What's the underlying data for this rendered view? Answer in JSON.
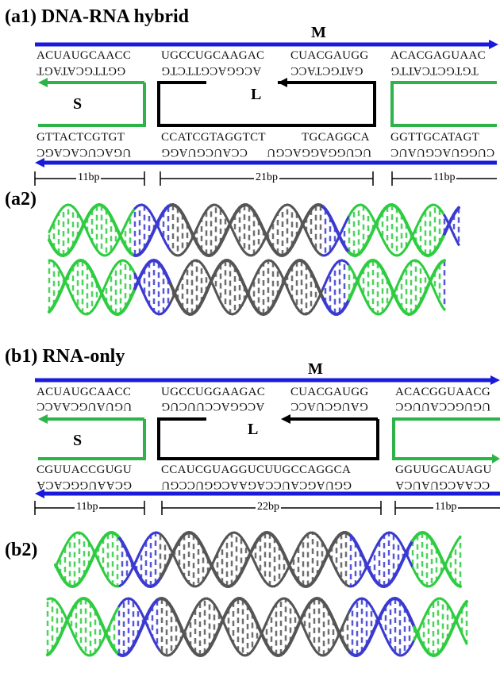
{
  "a1": {
    "title": "(a1) DNA-RNA hybrid",
    "strand_m": "M",
    "strand_l": "L",
    "strand_s": "S",
    "top_row": [
      "ACUAUGCAACC",
      "UGCCUGCAAGAC",
      "CUACGAUGG",
      "ACACGAGUAAC"
    ],
    "top_row_flipped": [
      "GGTTGCATAGT",
      "ACGGACGTTCTG",
      "GATGCTACC",
      "TGTGCTCATTG"
    ],
    "bottom_row": [
      "GTTACTCGTGT",
      "CCATCGTAGGTCT",
      "TGCAGGCA",
      "GGTTGCATAGT"
    ],
    "bottom_row_flipped": [
      "UGACUCACAGC",
      "CCAUCGUAGG",
      "UCUGGAGGACGU",
      "CUGGUACGUAUC"
    ],
    "bp": [
      "11bp",
      "21bp",
      "11bp"
    ]
  },
  "a2": {
    "title": "(a2)"
  },
  "b1": {
    "title": "(b1) RNA-only",
    "strand_m": "M",
    "strand_l": "L",
    "strand_s": "S",
    "top_row": [
      "ACUAUGCAACC",
      "UGCCUGGAAGAC",
      "CUACGAUGG",
      "ACACGGUAACG"
    ],
    "top_row_flipped": [
      "UGUAUGCAACC",
      "ACGGACCUUCUG",
      "GAUGCUACC",
      "UGUGCCAUUGC"
    ],
    "bottom_row": [
      "CGUUACCGUGU",
      "CCAUCGUAGGUCUUGCCAGGCA",
      "GGUUGCAUAGU"
    ],
    "bottom_row_flipped": [
      "GCAAUGGCACA",
      "GGUAGCAUCCAGAACGGUCCGU",
      "CCAACGUAUCA"
    ],
    "bp": [
      "11bp",
      "22bp",
      "11bp"
    ]
  },
  "b2": {
    "title": "(b2)"
  },
  "colors": {
    "blue": "#1a1adc",
    "green": "#2db34a",
    "black": "#000000",
    "helix_blue": "#3a3ad0",
    "helix_green": "#2ecc40",
    "helix_gray": "#555555"
  }
}
